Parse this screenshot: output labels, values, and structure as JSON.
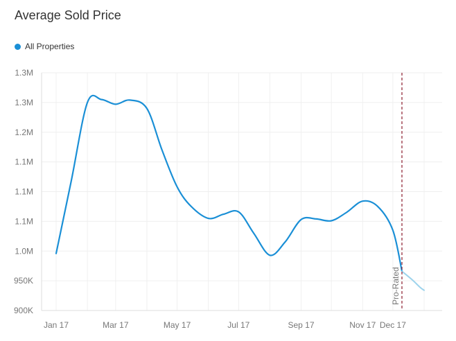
{
  "chart_data": {
    "type": "line",
    "title": "Average Sold Price",
    "xlabel": "",
    "ylabel": "",
    "x_tick_labels": [
      "Jan 17",
      "Mar 17",
      "May 17",
      "Jul 17",
      "Sep 17",
      "Nov 17",
      "Dec 17"
    ],
    "y_tick_labels": [
      "900K",
      "950K",
      "1.0M",
      "1.1M",
      "1.1M",
      "1.1M",
      "1.2M",
      "1.3M",
      "1.3M"
    ],
    "ylim": [
      900000,
      1300000
    ],
    "grid": true,
    "legend_position": "top-left",
    "series": [
      {
        "name": "All Properties",
        "color": "#1a8fd6",
        "points": [
          {
            "x": "2017-01-01",
            "y": 996000
          },
          {
            "x": "2017-01-16",
            "y": 1118000
          },
          {
            "x": "2017-02-01",
            "y": 1250000
          },
          {
            "x": "2017-02-15",
            "y": 1255000
          },
          {
            "x": "2017-03-01",
            "y": 1247000
          },
          {
            "x": "2017-03-15",
            "y": 1254000
          },
          {
            "x": "2017-04-01",
            "y": 1240000
          },
          {
            "x": "2017-04-16",
            "y": 1170000
          },
          {
            "x": "2017-05-01",
            "y": 1108000
          },
          {
            "x": "2017-05-15",
            "y": 1075000
          },
          {
            "x": "2017-06-01",
            "y": 1055000
          },
          {
            "x": "2017-06-16",
            "y": 1062000
          },
          {
            "x": "2017-07-01",
            "y": 1066000
          },
          {
            "x": "2017-07-16",
            "y": 1030000
          },
          {
            "x": "2017-08-01",
            "y": 993000
          },
          {
            "x": "2017-08-16",
            "y": 1015000
          },
          {
            "x": "2017-09-01",
            "y": 1053000
          },
          {
            "x": "2017-09-16",
            "y": 1054000
          },
          {
            "x": "2017-10-01",
            "y": 1051000
          },
          {
            "x": "2017-10-16",
            "y": 1065000
          },
          {
            "x": "2017-11-01",
            "y": 1084000
          },
          {
            "x": "2017-11-16",
            "y": 1075000
          },
          {
            "x": "2017-12-01",
            "y": 1035000
          },
          {
            "x": "2017-12-10",
            "y": 966000
          }
        ]
      },
      {
        "name": "",
        "projected": true,
        "color": "#9dd3ec",
        "points": [
          {
            "x": "2017-12-10",
            "y": 966000
          },
          {
            "x": "2017-12-20",
            "y": 952000
          },
          {
            "x": "2017-12-28",
            "y": 939000
          },
          {
            "x": "2018-01-01",
            "y": 934000
          }
        ]
      }
    ],
    "annotations": [
      {
        "type": "vertical-line",
        "x": "2017-12-10",
        "label": "Pro-Rated",
        "color": "#8b1a2b",
        "style": "dashed"
      }
    ]
  }
}
